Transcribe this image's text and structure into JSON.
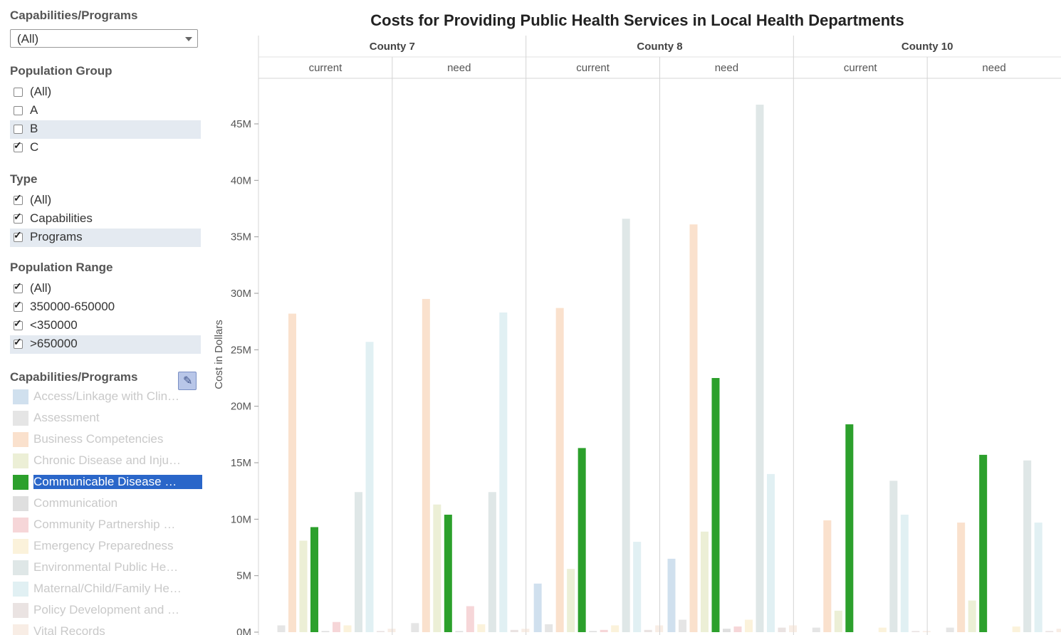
{
  "sidebar": {
    "top_filter": {
      "title": "Capabilities/Programs",
      "value": "(All)"
    },
    "population_group": {
      "title": "Population Group",
      "items": [
        {
          "label": "(All)",
          "checked": false,
          "highlight": false
        },
        {
          "label": "A",
          "checked": false,
          "highlight": false
        },
        {
          "label": "B",
          "checked": false,
          "highlight": true
        },
        {
          "label": "C",
          "checked": true,
          "highlight": false
        }
      ]
    },
    "type": {
      "title": "Type",
      "items": [
        {
          "label": "(All)",
          "checked": true,
          "highlight": false
        },
        {
          "label": "Capabilities",
          "checked": true,
          "highlight": false
        },
        {
          "label": "Programs",
          "checked": true,
          "highlight": true
        }
      ]
    },
    "population_range": {
      "title": "Population Range",
      "items": [
        {
          "label": "(All)",
          "checked": true,
          "highlight": false
        },
        {
          "label": "350000-650000",
          "checked": true,
          "highlight": false
        },
        {
          "label": "<350000",
          "checked": true,
          "highlight": false
        },
        {
          "label": ">650000",
          "checked": true,
          "highlight": true
        }
      ]
    },
    "legend": {
      "title": "Capabilities/Programs",
      "items": [
        {
          "label": "Access/Linkage with Clinical Care",
          "color": "#a9c6e0",
          "selected": false
        },
        {
          "label": "Assessment",
          "color": "#cfcfcf",
          "selected": false
        },
        {
          "label": "Business Competencies",
          "color": "#f6c9a4",
          "selected": false
        },
        {
          "label": "Chronic Disease and Injury Prevention",
          "color": "#dde2b5",
          "selected": false
        },
        {
          "label": "Communicable Disease Control",
          "color": "#2ca02c",
          "selected": true
        },
        {
          "label": "Communication",
          "color": "#c4c4c4",
          "selected": false
        },
        {
          "label": "Community Partnership Development",
          "color": "#eeb4b8",
          "selected": false
        },
        {
          "label": "Emergency Preparedness",
          "color": "#f7e8bd",
          "selected": false
        },
        {
          "label": "Environmental Public Health",
          "color": "#c5d3d3",
          "selected": false
        },
        {
          "label": "Maternal/Child/Family Health",
          "color": "#c9e3ea",
          "selected": false
        },
        {
          "label": "Policy Development and Support",
          "color": "#d9cccb",
          "selected": false
        },
        {
          "label": "Vital Records",
          "color": "#f3dfd0",
          "selected": false
        }
      ]
    }
  },
  "chart_data": {
    "type": "bar",
    "title": "Costs for Providing Public Health Services in Local Health Departments",
    "ylabel": "Cost in Dollars",
    "ylim": [
      0,
      47500000
    ],
    "yticks": [
      {
        "value": 0,
        "label": "0M"
      },
      {
        "value": 5000000,
        "label": "5M"
      },
      {
        "value": 10000000,
        "label": "10M"
      },
      {
        "value": 15000000,
        "label": "15M"
      },
      {
        "value": 20000000,
        "label": "20M"
      },
      {
        "value": 25000000,
        "label": "25M"
      },
      {
        "value": 30000000,
        "label": "30M"
      },
      {
        "value": 35000000,
        "label": "35M"
      },
      {
        "value": 40000000,
        "label": "40M"
      },
      {
        "value": 45000000,
        "label": "45M"
      }
    ],
    "grid": false,
    "groups": [
      "County 7",
      "County 8",
      "County 10"
    ],
    "subgroups": [
      "current",
      "need"
    ],
    "categories": [
      "Access/Linkage with Clinical Care",
      "Assessment",
      "Business Competencies",
      "Chronic Disease and Injury Prevention",
      "Communicable Disease Control",
      "Communication",
      "Community Partnership Development",
      "Emergency Preparedness",
      "Environmental Public Health",
      "Maternal/Child/Family Health",
      "Policy Development and Support",
      "Vital Records"
    ],
    "panels": [
      {
        "group": "County 7",
        "subgroup": "current",
        "values": [
          0,
          600000,
          28200000,
          8100000,
          9300000,
          100000,
          900000,
          600000,
          12400000,
          25700000,
          100000,
          300000
        ]
      },
      {
        "group": "County 7",
        "subgroup": "need",
        "values": [
          0,
          800000,
          29500000,
          11300000,
          10400000,
          100000,
          2300000,
          700000,
          12400000,
          28300000,
          200000,
          300000
        ]
      },
      {
        "group": "County 8",
        "subgroup": "current",
        "values": [
          4300000,
          700000,
          28700000,
          5600000,
          16300000,
          100000,
          200000,
          600000,
          36600000,
          8000000,
          200000,
          600000
        ]
      },
      {
        "group": "County 8",
        "subgroup": "need",
        "values": [
          6500000,
          1100000,
          36100000,
          8900000,
          22500000,
          300000,
          500000,
          1100000,
          46700000,
          14000000,
          400000,
          600000
        ]
      },
      {
        "group": "County 10",
        "subgroup": "current",
        "values": [
          0,
          400000,
          9900000,
          1900000,
          18400000,
          0,
          0,
          400000,
          13400000,
          10400000,
          100000,
          100000
        ]
      },
      {
        "group": "County 10",
        "subgroup": "need",
        "values": [
          0,
          400000,
          9700000,
          2800000,
          15700000,
          0,
          0,
          500000,
          15200000,
          9700000,
          100000,
          300000
        ]
      }
    ]
  }
}
